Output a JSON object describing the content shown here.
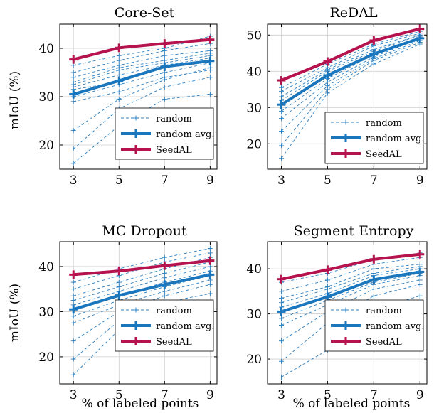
{
  "colors": {
    "random": "#2a7fc1",
    "avg": "#1a76bd",
    "seedal": "#b5124e",
    "grid": "#cfcfcf"
  },
  "chart_data": [
    {
      "type": "line",
      "title": "Core-Set",
      "ylabel": "mIoU (%)",
      "xlabel": "",
      "x": [
        3,
        5,
        7,
        9
      ],
      "xlim": [
        2.4,
        9.3
      ],
      "ylim": [
        15,
        45
      ],
      "yticks": [
        20,
        30,
        40
      ],
      "grid": true,
      "legend_position": "bottom-right",
      "legend": [
        "random",
        "random avg.",
        "SeedAL"
      ],
      "random_runs": [
        [
          16.2,
          24.0,
          29.5,
          30.5
        ],
        [
          19.2,
          27.5,
          32.0,
          34.0
        ],
        [
          23.0,
          29.5,
          33.5,
          36.0
        ],
        [
          29.0,
          31.0,
          34.0,
          35.5
        ],
        [
          30.0,
          32.5,
          35.0,
          37.0
        ],
        [
          31.5,
          33.0,
          36.0,
          37.5
        ],
        [
          32.0,
          34.5,
          36.5,
          38.0
        ],
        [
          32.5,
          35.5,
          37.0,
          38.5
        ],
        [
          33.0,
          36.0,
          37.5,
          39.0
        ],
        [
          34.0,
          36.5,
          38.5,
          39.5
        ],
        [
          35.0,
          37.5,
          39.5,
          41.0
        ],
        [
          36.5,
          38.5,
          40.0,
          42.5
        ]
      ],
      "random_avg": [
        30.5,
        33.3,
        36.2,
        37.4
      ],
      "seedal": [
        37.7,
        40.1,
        41.0,
        41.8
      ]
    },
    {
      "type": "line",
      "title": "ReDAL",
      "ylabel": "",
      "xlabel": "",
      "x": [
        3,
        5,
        7,
        9
      ],
      "xlim": [
        2.4,
        9.3
      ],
      "ylim": [
        13,
        53
      ],
      "yticks": [
        20,
        30,
        40,
        50
      ],
      "grid": true,
      "legend_position": "bottom-right",
      "legend": [
        "random",
        "random avg.",
        "SeedAL"
      ],
      "random_runs": [
        [
          16.0,
          34.0,
          42.0,
          47.5
        ],
        [
          19.5,
          35.0,
          43.0,
          48.0
        ],
        [
          23.5,
          36.0,
          43.5,
          48.5
        ],
        [
          27.0,
          37.0,
          44.0,
          49.0
        ],
        [
          29.0,
          38.0,
          44.5,
          49.0
        ],
        [
          31.0,
          39.0,
          45.0,
          49.5
        ],
        [
          32.0,
          40.0,
          45.5,
          50.0
        ],
        [
          33.0,
          40.5,
          46.0,
          50.0
        ],
        [
          34.5,
          41.0,
          47.0,
          50.5
        ],
        [
          35.5,
          42.0,
          47.5,
          51.0
        ]
      ],
      "random_avg": [
        30.8,
        38.9,
        44.8,
        49.1
      ],
      "seedal": [
        37.5,
        42.7,
        48.5,
        51.7
      ]
    },
    {
      "type": "line",
      "title": "MC Dropout",
      "ylabel": "mIoU (%)",
      "xlabel": "% of labeled points",
      "x": [
        3,
        5,
        7,
        9
      ],
      "xlim": [
        2.4,
        9.3
      ],
      "ylim": [
        14,
        45.5
      ],
      "yticks": [
        20,
        30,
        40
      ],
      "grid": true,
      "legend_position": "bottom-right",
      "legend": [
        "random",
        "random avg.",
        "SeedAL"
      ],
      "random_runs": [
        [
          16.0,
          26.0,
          30.0,
          31.5
        ],
        [
          19.5,
          28.0,
          32.0,
          34.0
        ],
        [
          23.5,
          30.0,
          33.5,
          36.0
        ],
        [
          27.5,
          31.5,
          34.5,
          37.0
        ],
        [
          29.0,
          32.5,
          35.5,
          38.0
        ],
        [
          30.5,
          33.5,
          36.5,
          39.0
        ],
        [
          31.5,
          34.5,
          37.5,
          40.0
        ],
        [
          32.5,
          35.5,
          38.5,
          41.0
        ],
        [
          33.5,
          36.5,
          39.5,
          42.0
        ],
        [
          35.0,
          38.0,
          41.0,
          43.0
        ],
        [
          36.5,
          39.5,
          42.0,
          44.0
        ]
      ],
      "random_avg": [
        30.5,
        33.6,
        36.0,
        38.2
      ],
      "seedal": [
        38.2,
        39.0,
        40.2,
        41.3
      ]
    },
    {
      "type": "line",
      "title": "Segment Entropy",
      "ylabel": "",
      "xlabel": "% of labeled points",
      "x": [
        3,
        5,
        7,
        9
      ],
      "xlim": [
        2.4,
        9.3
      ],
      "ylim": [
        14.5,
        46
      ],
      "yticks": [
        20,
        30,
        40
      ],
      "grid": true,
      "legend_position": "bottom-right",
      "legend": [
        "random",
        "random avg.",
        "SeedAL"
      ],
      "random_runs": [
        [
          16.0,
          22.0,
          31.0,
          34.0
        ],
        [
          19.5,
          28.0,
          34.0,
          36.5
        ],
        [
          24.0,
          30.5,
          35.5,
          37.5
        ],
        [
          27.5,
          32.0,
          36.5,
          38.5
        ],
        [
          29.0,
          33.0,
          37.0,
          39.0
        ],
        [
          30.5,
          34.0,
          37.5,
          39.5
        ],
        [
          31.5,
          34.5,
          38.5,
          40.0
        ],
        [
          32.5,
          35.5,
          39.0,
          40.5
        ],
        [
          33.5,
          36.0,
          40.0,
          41.0
        ],
        [
          35.0,
          37.5,
          41.0,
          42.5
        ],
        [
          37.0,
          39.0,
          42.0,
          43.5
        ]
      ],
      "random_avg": [
        30.5,
        33.8,
        37.6,
        39.3
      ],
      "seedal": [
        37.7,
        39.8,
        42.1,
        43.2
      ]
    }
  ]
}
